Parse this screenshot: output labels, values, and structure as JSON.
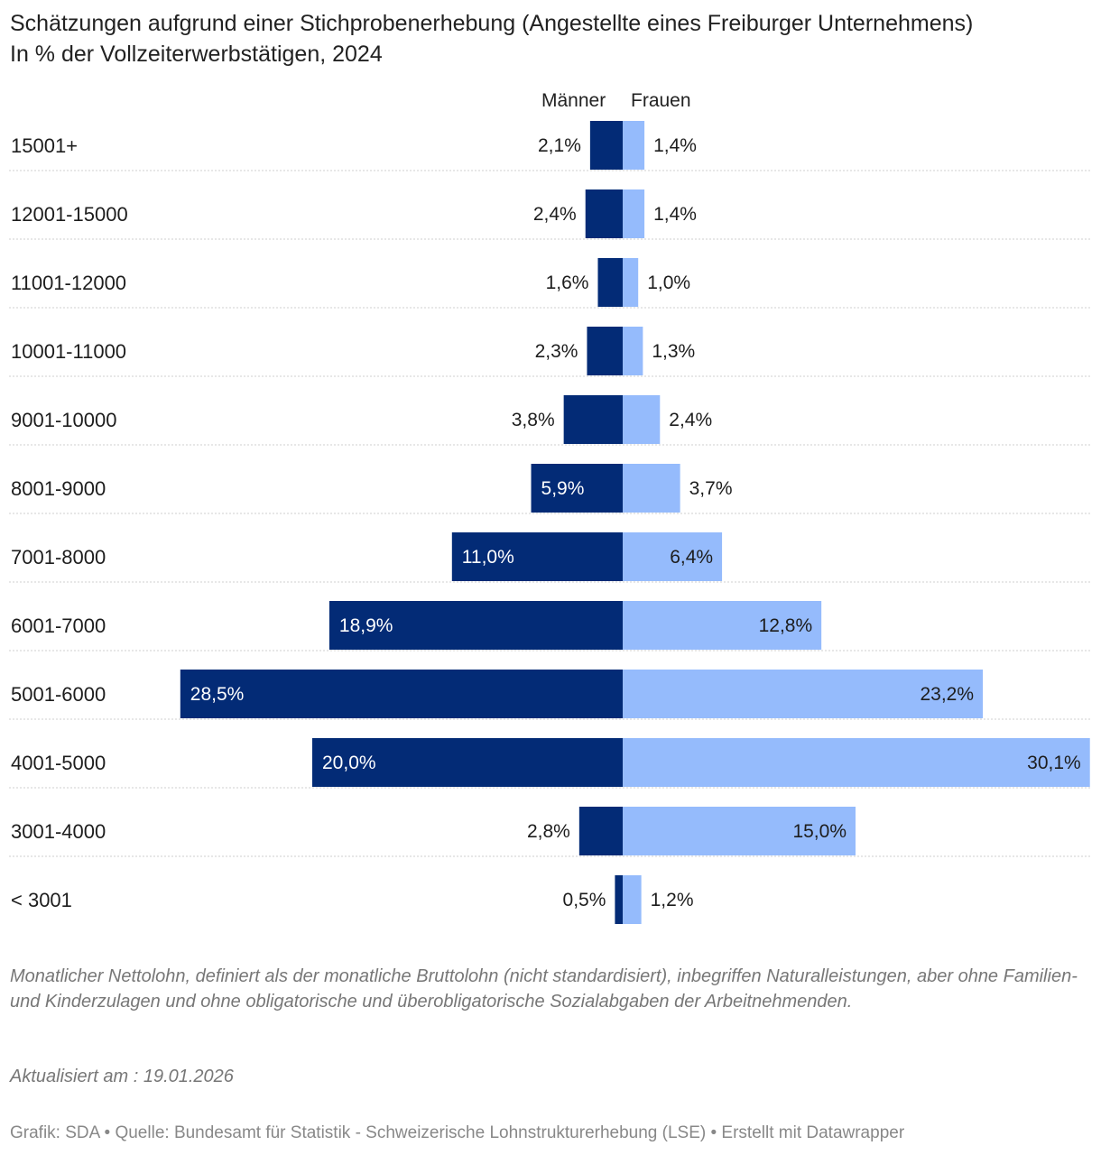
{
  "header": {
    "title": "Schätzungen aufgrund einer Stichprobenerhebung (Angestellte eines Freiburger Unternehmens)",
    "subtitle": "In % der Vollzeiterwerbstätigen, 2024"
  },
  "legend": {
    "men": "Männer",
    "women": "Frauen"
  },
  "colors": {
    "men": "#032b76",
    "women": "#95bbfc",
    "divider": "#cfcfcf",
    "label_on_dark": "#ffffff",
    "label_default": "#1d1d1d"
  },
  "chart_data": {
    "type": "bar",
    "orientation": "horizontal-diverging",
    "categories": [
      "15001+",
      "12001-15000",
      "11001-12000",
      "10001-11000",
      "9001-10000",
      "8001-9000",
      "7001-8000",
      "6001-7000",
      "5001-6000",
      "4001-5000",
      "3001-4000",
      "< 3001"
    ],
    "series": [
      {
        "name": "Männer",
        "values": [
          2.1,
          2.4,
          1.6,
          2.3,
          3.8,
          5.9,
          11.0,
          18.9,
          28.5,
          20.0,
          2.8,
          0.5
        ],
        "labels": [
          "2,1%",
          "2,4%",
          "1,6%",
          "2,3%",
          "3,8%",
          "5,9%",
          "11,0%",
          "18,9%",
          "28,5%",
          "20,0%",
          "2,8%",
          "0,5%"
        ]
      },
      {
        "name": "Frauen",
        "values": [
          1.4,
          1.4,
          1.0,
          1.3,
          2.4,
          3.7,
          6.4,
          12.8,
          23.2,
          30.1,
          15.0,
          1.2
        ],
        "labels": [
          "1,4%",
          "1,4%",
          "1,0%",
          "1,3%",
          "2,4%",
          "3,7%",
          "6,4%",
          "12,8%",
          "23,2%",
          "30,1%",
          "15,0%",
          "1,2%"
        ]
      }
    ],
    "unit": "%"
  },
  "notes": "Monatlicher Nettolohn, definiert als der monatliche Bruttolohn (nicht standardisiert), inbegriffen Naturalleistungen, aber ohne Familien- und Kinderzulagen und ohne obligatorische und überobligatorische Sozialabgaben der Arbeitnehmenden.",
  "updated": "Aktualisiert am : 19.01.2026",
  "credits": "Grafik: SDA • Quelle: Bundesamt für Statistik - Schweizerische Lohnstrukturerhebung (LSE) • Erstellt mit Datawrapper"
}
